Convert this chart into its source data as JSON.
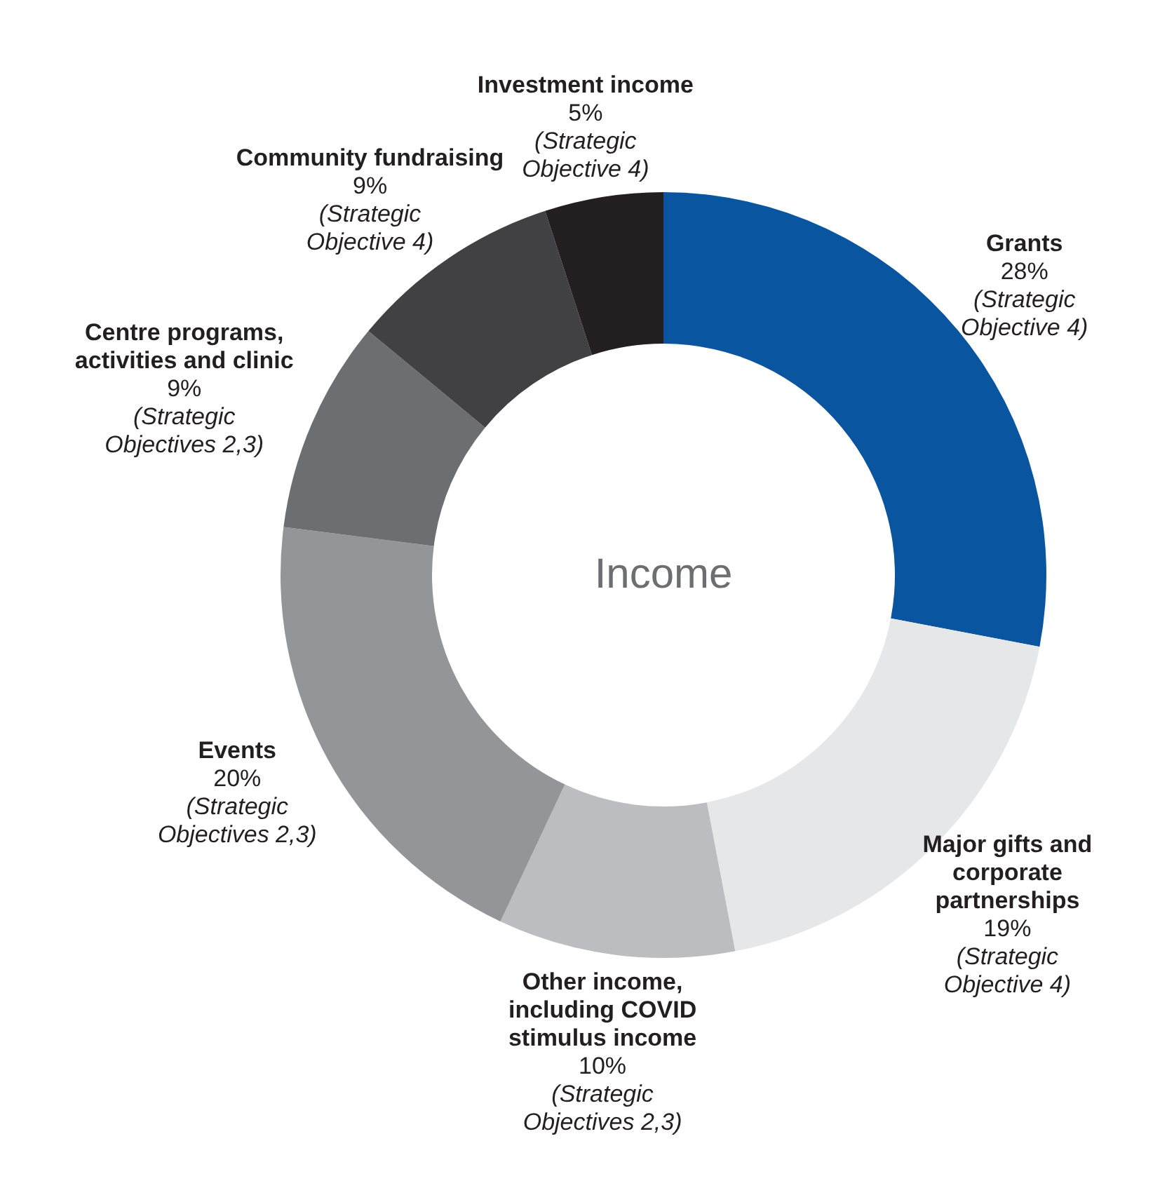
{
  "chart_data": {
    "type": "donut",
    "title": "Income",
    "categories": [
      "Grants",
      "Major gifts and corporate partnerships",
      "Other income, including COVID stimulus income",
      "Events",
      "Centre programs, activities and clinic",
      "Community fundraising",
      "Investment income"
    ],
    "values": [
      28,
      19,
      10,
      20,
      9,
      9,
      5
    ],
    "colors": [
      "#0a55a0",
      "#e6e7e8",
      "#bcbdc0",
      "#939598",
      "#6d6e71",
      "#414042",
      "#231f20"
    ],
    "value_labels": [
      "28%",
      "19%",
      "10%",
      "20%",
      "9%",
      "9%",
      "5%"
    ],
    "annotations": [
      {
        "text": "(Strategic Objective 4)",
        "x": "Grants"
      },
      {
        "text": "(Strategic Objective 4)",
        "x": "Major gifts and corporate partnerships"
      },
      {
        "text": "(Strategic Objectives 2,3)",
        "x": "Other income, including COVID stimulus income"
      },
      {
        "text": "(Strategic Objectives 2,3)",
        "x": "Events"
      },
      {
        "text": "(Strategic Objectives 2,3)",
        "x": "Centre programs, activities and clinic"
      },
      {
        "text": "(Strategic Objective 4)",
        "x": "Community fundraising"
      },
      {
        "text": "(Strategic Objective 4)",
        "x": "Investment income"
      }
    ]
  }
}
